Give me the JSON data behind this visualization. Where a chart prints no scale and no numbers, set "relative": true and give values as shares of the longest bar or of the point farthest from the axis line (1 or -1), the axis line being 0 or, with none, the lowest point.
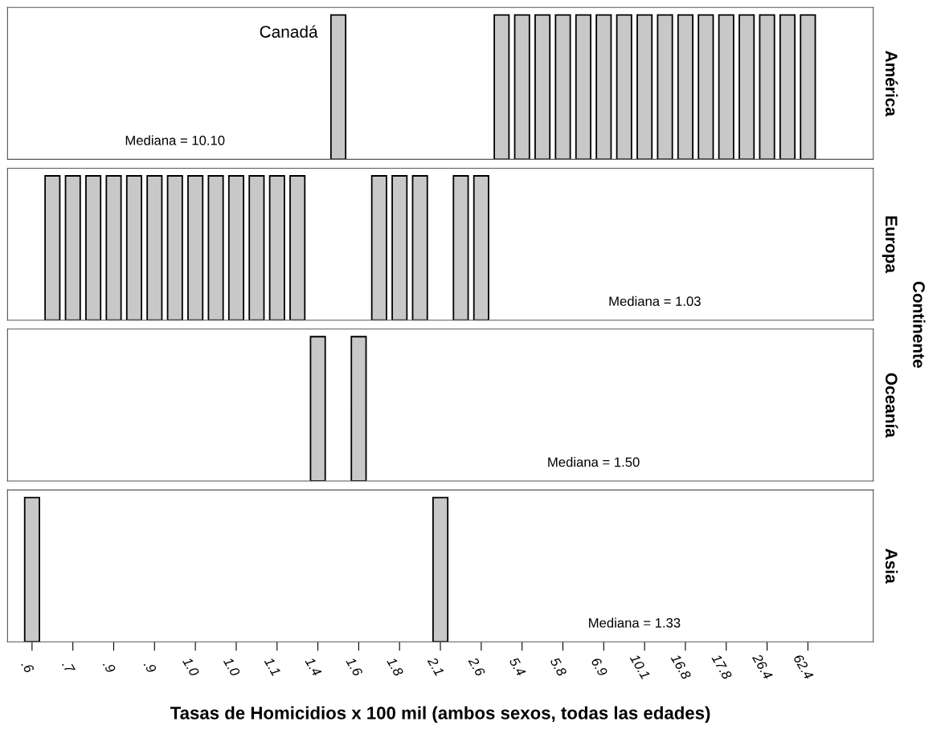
{
  "chart_data": [
    {
      "type": "bar",
      "y2label": "América",
      "relative": true,
      "color": "#c8c8c8",
      "tick_labels": false,
      "grid": false,
      "annotations": [
        "Mediana = 10.10",
        "Canadá"
      ],
      "categories": [
        ".6",
        null,
        ".7",
        null,
        ".9",
        null,
        ".9",
        null,
        "1.0",
        null,
        "1.0",
        null,
        "1.1",
        null,
        "1.4",
        null,
        "1.6",
        null,
        "1.8",
        null,
        "2.1",
        null,
        "2.6",
        null,
        "5.4",
        null,
        "5.8",
        null,
        "6.9",
        null,
        "10.1",
        null,
        "16.8",
        null,
        "17.8",
        null,
        "26.4",
        null,
        "62.4"
      ],
      "values": [
        null,
        null,
        null,
        null,
        null,
        null,
        null,
        null,
        null,
        null,
        null,
        null,
        null,
        null,
        null,
        1,
        null,
        null,
        null,
        null,
        null,
        null,
        null,
        1,
        1,
        1,
        1,
        1,
        1,
        1,
        1,
        1,
        1,
        1,
        1,
        1,
        1,
        1,
        1
      ]
    },
    {
      "type": "bar",
      "y2label": "Europa",
      "relative": true,
      "color": "#c8c8c8",
      "tick_labels": false,
      "grid": false,
      "annotations": [
        "Mediana = 1.03",
        "Continente"
      ],
      "categories": [
        ".6",
        null,
        ".7",
        null,
        ".9",
        null,
        ".9",
        null,
        "1.0",
        null,
        "1.0",
        null,
        "1.1",
        null,
        "1.4",
        null,
        "1.6",
        null,
        "1.8",
        null,
        "2.1",
        null,
        "2.6",
        null,
        "5.4",
        null,
        "5.8",
        null,
        "6.9",
        null,
        "10.1",
        null,
        "16.8",
        null,
        "17.8",
        null,
        "26.4",
        null,
        "62.4"
      ],
      "values": [
        null,
        1,
        1,
        1,
        1,
        1,
        1,
        1,
        1,
        1,
        1,
        1,
        1,
        1,
        null,
        null,
        null,
        1,
        1,
        1,
        null,
        1,
        1,
        null,
        null,
        null,
        null,
        null,
        null,
        null,
        null,
        null,
        null,
        null,
        null,
        null,
        null,
        null,
        null
      ]
    },
    {
      "type": "bar",
      "y2label": "Oceanía",
      "relative": true,
      "color": "#c8c8c8",
      "tick_labels": false,
      "grid": false,
      "annotations": [
        "Mediana = 1.50"
      ],
      "categories": [
        ".6",
        null,
        ".7",
        null,
        ".9",
        null,
        ".9",
        null,
        "1.0",
        null,
        "1.0",
        null,
        "1.1",
        null,
        "1.4",
        null,
        "1.6",
        null,
        "1.8",
        null,
        "2.1",
        null,
        "2.6",
        null,
        "5.4",
        null,
        "5.8",
        null,
        "6.9",
        null,
        "10.1",
        null,
        "16.8",
        null,
        "17.8",
        null,
        "26.4",
        null,
        "62.4"
      ],
      "values": [
        null,
        null,
        null,
        null,
        null,
        null,
        null,
        null,
        null,
        null,
        null,
        null,
        null,
        null,
        1,
        null,
        1,
        null,
        null,
        null,
        null,
        null,
        null,
        null,
        null,
        null,
        null,
        null,
        null,
        null,
        null,
        null,
        null,
        null,
        null,
        null,
        null,
        null,
        null
      ]
    },
    {
      "type": "bar",
      "y2label": "Asia",
      "relative": true,
      "color": "#c8c8c8",
      "tick_labels": "x",
      "grid": false,
      "xlabel": "Tasas de Homicidios x 100 mil (ambos sexos, todas las edades)",
      "annotations": [
        "Mediana = 1.33"
      ],
      "categories": [
        ".6",
        null,
        ".7",
        null,
        ".9",
        null,
        ".9",
        null,
        "1.0",
        null,
        "1.0",
        null,
        "1.1",
        null,
        "1.4",
        null,
        "1.6",
        null,
        "1.8",
        null,
        "2.1",
        null,
        "2.6",
        null,
        "5.4",
        null,
        "5.8",
        null,
        "6.9",
        null,
        "10.1",
        null,
        "16.8",
        null,
        "17.8",
        null,
        "26.4",
        null,
        "62.4"
      ],
      "values": [
        1,
        null,
        null,
        null,
        null,
        null,
        null,
        null,
        null,
        null,
        null,
        null,
        null,
        null,
        null,
        null,
        null,
        null,
        null,
        null,
        1,
        null,
        null,
        null,
        null,
        null,
        null,
        null,
        null,
        null,
        null,
        null,
        null,
        null,
        null,
        null,
        null,
        null,
        null
      ]
    }
  ]
}
